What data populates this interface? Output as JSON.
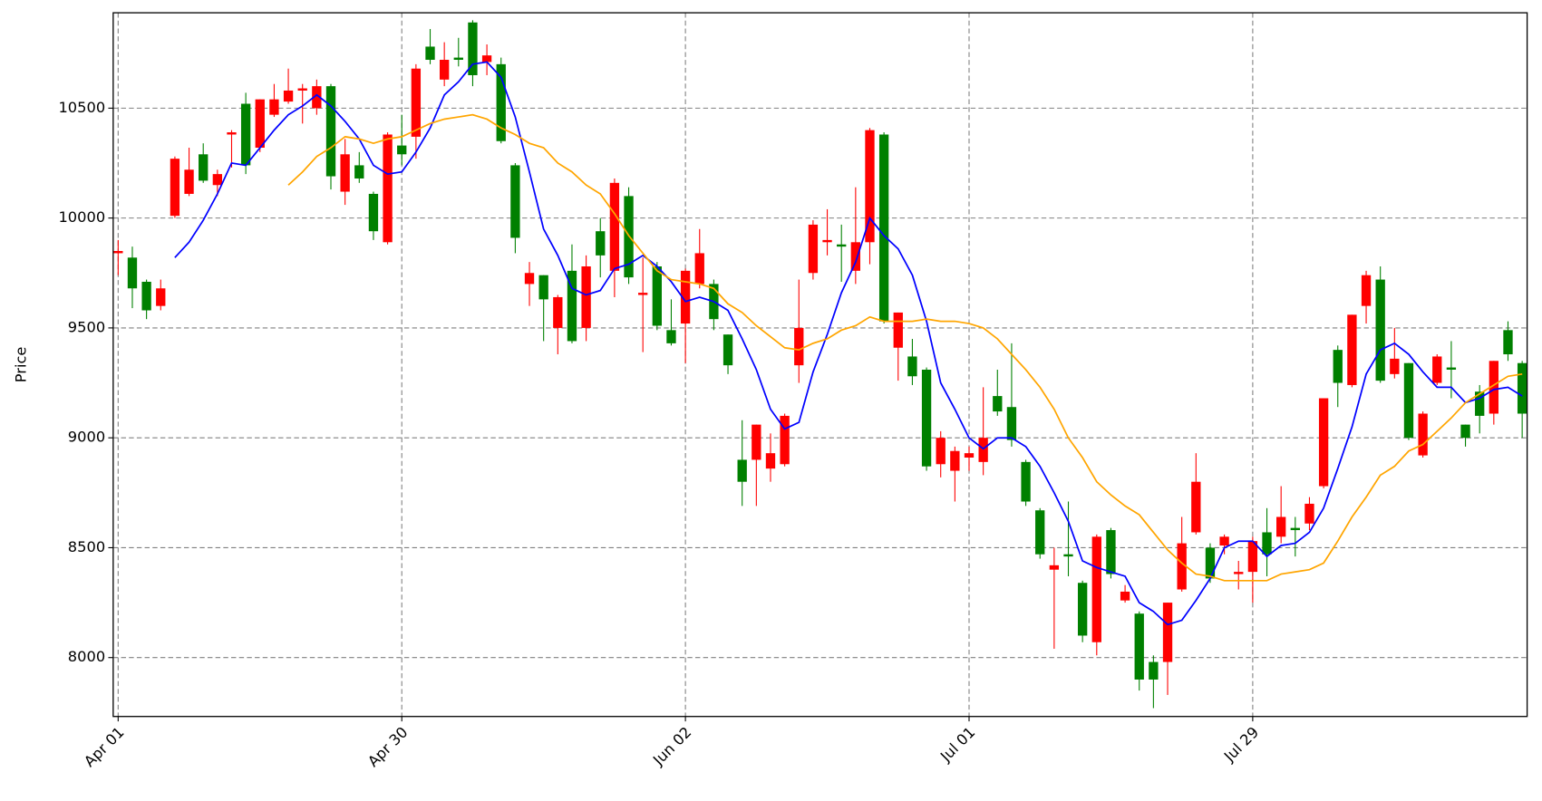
{
  "chart_data": {
    "type": "candlestick",
    "y_label": "Price",
    "categories": [
      "Apr 01",
      null,
      null,
      null,
      null,
      null,
      null,
      null,
      null,
      null,
      null,
      null,
      null,
      null,
      null,
      null,
      null,
      null,
      null,
      null,
      "Apr 30",
      null,
      null,
      null,
      null,
      null,
      null,
      null,
      null,
      null,
      null,
      null,
      null,
      null,
      null,
      null,
      null,
      null,
      null,
      null,
      "Jun 02",
      null,
      null,
      null,
      null,
      null,
      null,
      null,
      null,
      null,
      null,
      null,
      null,
      null,
      null,
      null,
      null,
      null,
      null,
      null,
      "Jul 01",
      null,
      null,
      null,
      null,
      null,
      null,
      null,
      null,
      null,
      null,
      null,
      null,
      null,
      null,
      null,
      null,
      null,
      null,
      null,
      "Jul 29",
      null,
      null,
      null,
      null,
      null,
      null,
      null,
      null,
      null,
      null,
      null,
      null,
      null,
      null,
      null,
      null,
      null,
      null,
      null
    ],
    "open": [
      9840,
      9820,
      9710,
      9600,
      10010,
      10110,
      10290,
      10150,
      10380,
      10520,
      10320,
      10470,
      10530,
      10580,
      10500,
      10600,
      10120,
      10240,
      10110,
      9890,
      10330,
      10370,
      10780,
      10630,
      10730,
      10890,
      10710,
      10700,
      10240,
      9700,
      9740,
      9500,
      9760,
      9500,
      9940,
      9760,
      10100,
      9650,
      9780,
      9490,
      9520,
      9700,
      9700,
      9470,
      8900,
      8900,
      8860,
      8880,
      9330,
      9750,
      9890,
      9880,
      9760,
      9890,
      10380,
      9410,
      9370,
      9310,
      8880,
      8850,
      8910,
      8890,
      9190,
      9140,
      8890,
      8670,
      8400,
      8470,
      8340,
      8070,
      8580,
      8260,
      8200,
      7980,
      7980,
      8310,
      8570,
      8500,
      8510,
      8380,
      8390,
      8570,
      8550,
      8590,
      8610,
      8780,
      9400,
      9240,
      9600,
      9720,
      9290,
      9340,
      8920,
      9250,
      9320,
      9060,
      9210,
      9110,
      9490,
      9340
    ],
    "high": [
      9900,
      9870,
      9720,
      9720,
      10280,
      10320,
      10340,
      10220,
      10400,
      10570,
      10540,
      10610,
      10680,
      10610,
      10630,
      10610,
      10360,
      10300,
      10120,
      10390,
      10470,
      10700,
      10860,
      10800,
      10820,
      10900,
      10790,
      10730,
      10250,
      9800,
      9740,
      9650,
      9880,
      9830,
      10000,
      10180,
      10140,
      9820,
      9800,
      9630,
      9770,
      9950,
      9720,
      9470,
      9080,
      9060,
      9020,
      9110,
      9720,
      9990,
      10040,
      9970,
      10140,
      10410,
      10390,
      9570,
      9450,
      9320,
      9030,
      8960,
      8960,
      9230,
      9310,
      9430,
      8900,
      8680,
      8500,
      8710,
      8350,
      8560,
      8590,
      8330,
      8210,
      8010,
      8250,
      8640,
      8930,
      8520,
      8560,
      8440,
      8550,
      8680,
      8780,
      8640,
      8730,
      9180,
      9420,
      9560,
      9760,
      9780,
      9500,
      9340,
      9120,
      9380,
      9440,
      9060,
      9240,
      9350,
      9530,
      9350
    ],
    "low": [
      9740,
      9590,
      9540,
      9580,
      10000,
      10100,
      10160,
      10100,
      10230,
      10200,
      10300,
      10460,
      10520,
      10430,
      10470,
      10130,
      10060,
      10160,
      9900,
      9880,
      10240,
      10270,
      10700,
      10600,
      10690,
      10600,
      10650,
      10340,
      9840,
      9600,
      9440,
      9380,
      9430,
      9440,
      9730,
      9640,
      9700,
      9390,
      9490,
      9420,
      9340,
      9680,
      9490,
      9290,
      8690,
      8690,
      8800,
      8870,
      9250,
      9720,
      9830,
      9710,
      9700,
      9790,
      9520,
      9260,
      9240,
      8850,
      8820,
      8710,
      8850,
      8830,
      9100,
      8960,
      8690,
      8450,
      8040,
      8370,
      8070,
      8010,
      8360,
      8250,
      7850,
      7770,
      7830,
      8300,
      8560,
      8340,
      8470,
      8310,
      8250,
      8370,
      8520,
      8460,
      8580,
      8770,
      9140,
      9230,
      9520,
      9250,
      9270,
      8990,
      8910,
      9240,
      9180,
      8960,
      9020,
      9060,
      9350,
      9000
    ],
    "close": [
      9850,
      9680,
      9580,
      9680,
      10270,
      10220,
      10170,
      10200,
      10390,
      10240,
      10540,
      10540,
      10580,
      10590,
      10600,
      10190,
      10290,
      10180,
      9940,
      10380,
      10290,
      10680,
      10720,
      10720,
      10720,
      10650,
      10740,
      10350,
      9910,
      9750,
      9630,
      9640,
      9440,
      9780,
      9830,
      10160,
      9730,
      9660,
      9510,
      9430,
      9760,
      9840,
      9540,
      9330,
      8800,
      9060,
      8930,
      9100,
      9500,
      9970,
      9900,
      9870,
      9890,
      10400,
      9530,
      9570,
      9280,
      8870,
      9000,
      8940,
      8930,
      9000,
      9120,
      8990,
      8710,
      8470,
      8420,
      8460,
      8100,
      8550,
      8380,
      8300,
      7900,
      7900,
      8250,
      8520,
      8800,
      8360,
      8550,
      8390,
      8530,
      8470,
      8640,
      8580,
      8700,
      9180,
      9250,
      9560,
      9740,
      9260,
      9360,
      9000,
      9110,
      9370,
      9310,
      9000,
      9100,
      9350,
      9380,
      9110
    ],
    "up_color": "red",
    "down_color": "green",
    "series": [
      {
        "color": "blue",
        "values": [
          null,
          null,
          null,
          null,
          9820,
          9890,
          9990,
          10110,
          10250,
          10240,
          10320,
          10400,
          10470,
          10510,
          10560,
          10510,
          10440,
          10360,
          10240,
          10200,
          10210,
          10300,
          10410,
          10560,
          10620,
          10700,
          10710,
          10640,
          10460,
          10210,
          9950,
          9830,
          9680,
          9650,
          9670,
          9770,
          9790,
          9830,
          9780,
          9710,
          9620,
          9640,
          9620,
          9580,
          9450,
          9310,
          9130,
          9040,
          9070,
          9300,
          9470,
          9660,
          9800,
          10000,
          9920,
          9860,
          9740,
          9530,
          9250,
          9130,
          9000,
          8950,
          9000,
          9000,
          8960,
          8870,
          8750,
          8620,
          8440,
          8410,
          8390,
          8370,
          8250,
          8210,
          8150,
          8170,
          8260,
          8360,
          8500,
          8530,
          8530,
          8460,
          8510,
          8520,
          8570,
          8680,
          8860,
          9050,
          9290,
          9400,
          9430,
          9380,
          9300,
          9230,
          9230,
          9160,
          9180,
          9220,
          9230,
          9190
        ]
      },
      {
        "color": "orange",
        "values": [
          null,
          null,
          null,
          null,
          null,
          null,
          null,
          null,
          null,
          null,
          null,
          null,
          10150,
          10210,
          10280,
          10320,
          10370,
          10360,
          10340,
          10360,
          10370,
          10400,
          10430,
          10450,
          10460,
          10470,
          10450,
          10410,
          10380,
          10340,
          10320,
          10250,
          10210,
          10150,
          10110,
          10020,
          9920,
          9840,
          9760,
          9720,
          9710,
          9700,
          9680,
          9610,
          9570,
          9510,
          9460,
          9410,
          9400,
          9430,
          9450,
          9490,
          9510,
          9550,
          9530,
          9530,
          9530,
          9540,
          9530,
          9530,
          9520,
          9500,
          9450,
          9380,
          9310,
          9230,
          9130,
          9000,
          8910,
          8800,
          8740,
          8690,
          8650,
          8570,
          8490,
          8430,
          8380,
          8370,
          8350,
          8350,
          8350,
          8350,
          8380,
          8390,
          8400,
          8430,
          8530,
          8640,
          8730,
          8830,
          8870,
          8940,
          8970,
          9030,
          9090,
          9160,
          9200,
          9240,
          9280,
          9290
        ]
      }
    ],
    "xlim": [
      -0.35,
      99.35
    ],
    "ylim": [
      7732,
      10934
    ],
    "yticks": [
      8000,
      8500,
      9000,
      9500,
      10000,
      10500
    ],
    "grid": true
  }
}
